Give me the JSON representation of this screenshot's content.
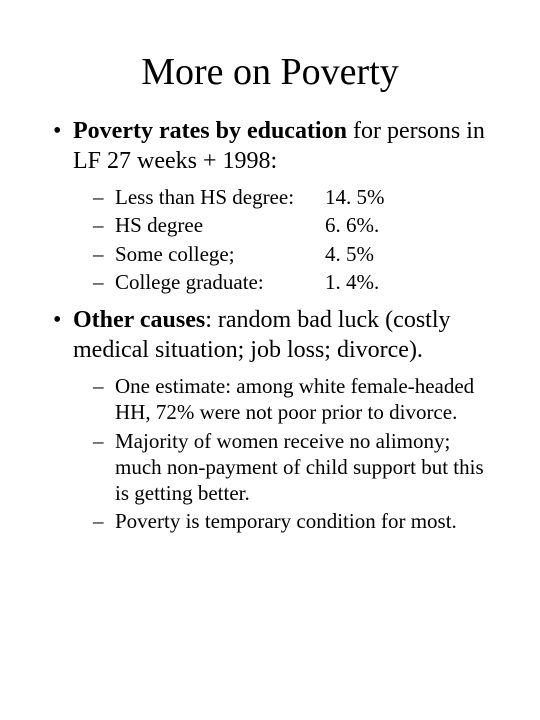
{
  "title": "More on Poverty",
  "bullet1": {
    "bold": "Poverty rates by education",
    "rest": " for persons in LF 27 weeks + 1998:",
    "items": [
      {
        "label": "Less than HS degree:",
        "value": "14. 5%"
      },
      {
        "label": "HS degree",
        "value": "6. 6%."
      },
      {
        "label": "Some college;",
        "value": "4. 5%"
      },
      {
        "label": "College graduate:",
        "value": "1. 4%."
      }
    ]
  },
  "bullet2": {
    "bold": "Other causes",
    "rest": ":  random bad luck (costly medical situation; job loss; divorce).",
    "items": [
      "One estimate: among white female-headed HH, 72% were not poor prior to divorce.",
      "Majority of women receive no alimony; much non-payment of child support but this is getting better.",
      "Poverty is temporary condition for most."
    ]
  }
}
